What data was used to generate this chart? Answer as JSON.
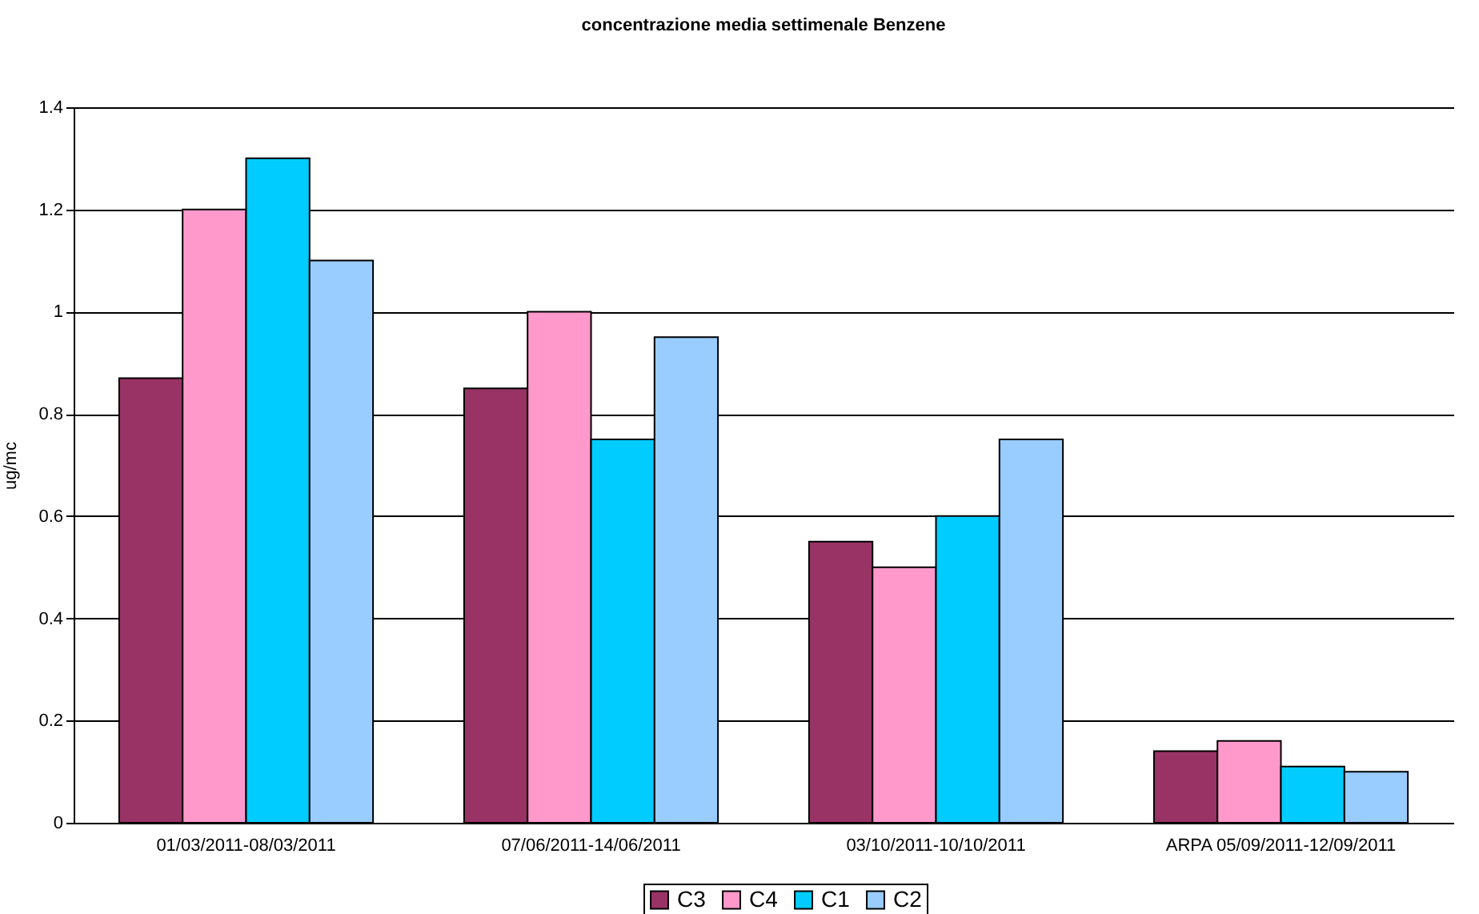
{
  "chart_data": {
    "type": "bar",
    "title": "concentrazione media settimenale Benzene",
    "ylabel": "ug/mc",
    "categories": [
      "01/03/2011-08/03/2011",
      "07/06/2011-14/06/2011",
      "03/10/2011-10/10/2011",
      "ARPA 05/09/2011-12/09/2011"
    ],
    "series": [
      {
        "name": "C3",
        "color": "#993366",
        "values": [
          0.87,
          0.85,
          0.55,
          0.14
        ]
      },
      {
        "name": "C4",
        "color": "#ff99cc",
        "values": [
          1.2,
          1.0,
          0.5,
          0.16
        ]
      },
      {
        "name": "C1",
        "color": "#00ccff",
        "values": [
          1.3,
          0.75,
          0.6,
          0.11
        ]
      },
      {
        "name": "C2",
        "color": "#99ccff",
        "values": [
          1.1,
          0.95,
          0.75,
          0.1
        ]
      }
    ],
    "ylim": [
      0,
      1.4
    ],
    "yticks": [
      0,
      0.2,
      0.4,
      0.6,
      0.8,
      1,
      1.2,
      1.4
    ],
    "grid": "y",
    "legend": "bottom"
  }
}
